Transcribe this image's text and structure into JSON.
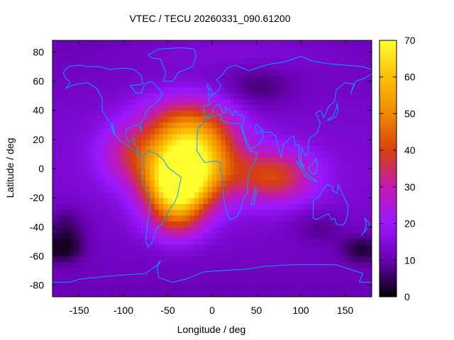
{
  "chart_data": {
    "type": "heatmap",
    "title": "VTEC / TECU 20260331_090.61200",
    "xlabel": "Longitude / deg",
    "ylabel": "Latitude / deg",
    "xlim": [
      -180,
      180
    ],
    "ylim": [
      -88,
      88
    ],
    "x_ticks": [
      -150,
      -100,
      -50,
      0,
      50,
      100,
      150
    ],
    "y_ticks": [
      -80,
      -60,
      -40,
      -20,
      0,
      20,
      40,
      60,
      80
    ],
    "colorbar": {
      "range": [
        0,
        70
      ],
      "ticks": [
        0,
        10,
        20,
        30,
        40,
        50,
        60,
        70
      ],
      "colormap": [
        "#000000",
        "#6a00b4",
        "#9a18ff",
        "#c21ab0",
        "#d8400e",
        "#f08800",
        "#fcc000",
        "#ffff30"
      ]
    },
    "grid": false,
    "overlay": "continent outlines",
    "overlay_color": "#00a0ff",
    "features": {
      "main_peak": {
        "lon": -25,
        "lat": 8,
        "vtec": 68
      },
      "south_lobe": {
        "lon": -40,
        "lat": -15,
        "vtec": 62
      },
      "eastern_band": {
        "lon": 70,
        "lat": -5,
        "vtec": 38
      },
      "background_low": 10,
      "south_polar_minimum": 2
    }
  }
}
